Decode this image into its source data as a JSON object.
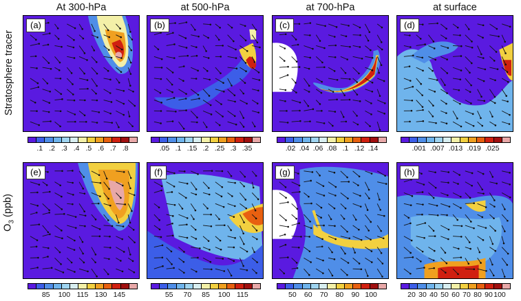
{
  "columns": [
    "At 300-hPa",
    "at 500-hPa",
    "at 700-hPa",
    "at surface"
  ],
  "rows": [
    {
      "title_main": "Stratosphere tracer",
      "title_sub": ""
    },
    {
      "title_main": "O",
      "title_sub": "3",
      "title_tail": " (ppb)"
    }
  ],
  "panel_labels": [
    "(a)",
    "(b)",
    "(c)",
    "(d)",
    "(e)",
    "(f)",
    "(g)",
    "(h)"
  ],
  "colorbar_colors": [
    "#5a1ae0",
    "#3c5ee8",
    "#4f8ee8",
    "#6fb4ec",
    "#9fd4f0",
    "#d8eef0",
    "#f3f0a8",
    "#f2d040",
    "#f0a020",
    "#e86010",
    "#d02010",
    "#a01010",
    "#e8a8a8"
  ],
  "colorbar_ticks": [
    [
      ".1",
      ".2",
      ".3",
      ".4",
      ".5",
      ".6",
      ".7",
      ".8"
    ],
    [
      ".05",
      ".1",
      ".15",
      ".2",
      ".25",
      ".3",
      ".35"
    ],
    [
      ".02",
      ".04",
      ".06",
      ".08",
      ".1",
      ".12",
      ".14"
    ],
    [
      ".001",
      ".007",
      ".013",
      ".019",
      ".025"
    ],
    [
      "85",
      "100",
      "115",
      "130",
      "145"
    ],
    [
      "55",
      "70",
      "85",
      "100",
      "115"
    ],
    [
      "50",
      "60",
      "70",
      "80",
      "90",
      "100"
    ],
    [
      "20",
      "30",
      "40",
      "50",
      "60",
      "70",
      "80",
      "90",
      "100"
    ]
  ]
}
